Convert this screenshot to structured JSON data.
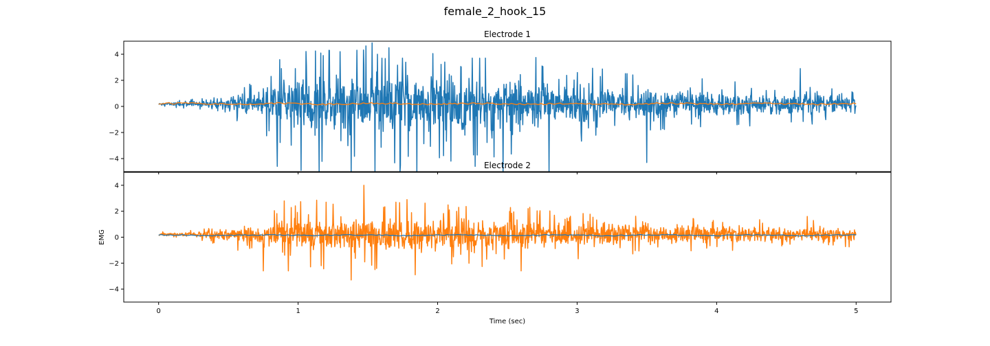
{
  "figure": {
    "suptitle": "female_2_hook_15"
  },
  "colors": {
    "blue": "#1f77b4",
    "orange": "#ff7f0e",
    "frame": "#000000"
  },
  "chart_data": [
    {
      "type": "line",
      "title": "Electrode 1",
      "xlabel": "",
      "ylabel": "",
      "xlim": [
        -0.25,
        5.25
      ],
      "ylim": [
        -5,
        5
      ],
      "xticks": [
        0,
        1,
        2,
        3,
        4,
        5
      ],
      "show_xticklabels": false,
      "yticks": [
        -4,
        -2,
        0,
        2,
        4
      ],
      "grid": false,
      "series": [
        {
          "role": "raw",
          "color": "#1f77b4",
          "baseline": 0.2,
          "envelope_x": [
            0,
            0.3,
            0.7,
            0.85,
            1.0,
            1.3,
            1.6,
            1.9,
            2.2,
            2.6,
            3.0,
            3.5,
            4.0,
            4.5,
            5.0
          ],
          "envelope_amp": [
            0.1,
            0.2,
            0.9,
            1.7,
            2.0,
            2.2,
            2.3,
            2.2,
            2.1,
            1.8,
            1.4,
            1.1,
            0.9,
            0.8,
            0.7
          ],
          "peaks": [
            {
              "x": 0.85,
              "y": -4.6
            },
            {
              "x": 0.88,
              "y": 2.9
            },
            {
              "x": 0.98,
              "y": 2.9
            },
            {
              "x": 1.02,
              "y": -4.9
            },
            {
              "x": 1.15,
              "y": -5.0
            },
            {
              "x": 1.18,
              "y": 3.9
            },
            {
              "x": 1.22,
              "y": 4.3
            },
            {
              "x": 1.3,
              "y": 4.2
            },
            {
              "x": 1.38,
              "y": -5.0
            },
            {
              "x": 1.47,
              "y": 3.2
            },
            {
              "x": 1.55,
              "y": -5.0
            },
            {
              "x": 1.57,
              "y": 4.0
            },
            {
              "x": 1.6,
              "y": 3.7
            },
            {
              "x": 1.65,
              "y": 4.5
            },
            {
              "x": 1.73,
              "y": -5.0
            },
            {
              "x": 1.85,
              "y": -5.0
            },
            {
              "x": 2.05,
              "y": 3.4
            },
            {
              "x": 2.27,
              "y": -4.6
            },
            {
              "x": 2.3,
              "y": 3.7
            },
            {
              "x": 2.47,
              "y": -5.0
            },
            {
              "x": 2.75,
              "y": 3.1
            },
            {
              "x": 2.8,
              "y": -5.0
            },
            {
              "x": 3.5,
              "y": -4.3
            },
            {
              "x": 4.6,
              "y": 2.9
            }
          ]
        },
        {
          "role": "smoothed",
          "color": "#ff7f0e",
          "baseline": 0.2,
          "ripple": 0.06
        }
      ]
    },
    {
      "type": "line",
      "title": "Electrode 2",
      "xlabel": "Time (sec)",
      "ylabel": "EMG",
      "xlim": [
        -0.25,
        5.25
      ],
      "ylim": [
        -5,
        5
      ],
      "xticks": [
        0,
        1,
        2,
        3,
        4,
        5
      ],
      "show_xticklabels": true,
      "yticks": [
        -4,
        -2,
        0,
        2,
        4
      ],
      "grid": false,
      "series": [
        {
          "role": "raw",
          "color": "#ff7f0e",
          "baseline": 0.2,
          "envelope_x": [
            0,
            0.3,
            0.5,
            0.75,
            0.9,
            1.2,
            1.5,
            1.8,
            2.1,
            2.5,
            3.0,
            3.5,
            4.0,
            4.5,
            5.0
          ],
          "envelope_amp": [
            0.1,
            0.2,
            0.5,
            0.9,
            1.2,
            1.3,
            1.4,
            1.4,
            1.3,
            1.1,
            0.9,
            0.75,
            0.6,
            0.55,
            0.5
          ],
          "peaks": [
            {
              "x": 0.75,
              "y": -2.6
            },
            {
              "x": 0.9,
              "y": 2.8
            },
            {
              "x": 0.93,
              "y": -2.6
            },
            {
              "x": 1.2,
              "y": 2.7
            },
            {
              "x": 1.38,
              "y": -3.3
            },
            {
              "x": 1.47,
              "y": 4.0
            },
            {
              "x": 1.55,
              "y": -2.5
            },
            {
              "x": 1.7,
              "y": 2.7
            },
            {
              "x": 1.78,
              "y": 2.9
            },
            {
              "x": 1.84,
              "y": -2.9
            },
            {
              "x": 2.15,
              "y": 2.3
            },
            {
              "x": 2.6,
              "y": -2.6
            },
            {
              "x": 2.65,
              "y": 2.2
            },
            {
              "x": 4.65,
              "y": 1.6
            }
          ]
        },
        {
          "role": "smoothed",
          "color": "#1f77b4",
          "baseline": 0.15,
          "ripple": 0.04
        }
      ]
    }
  ]
}
